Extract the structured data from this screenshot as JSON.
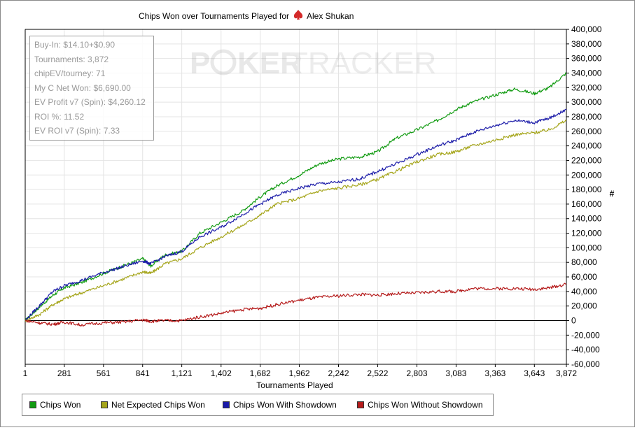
{
  "title": "Chips Won over Tournaments Played for",
  "player": "Alex Shukan",
  "watermark": {
    "part1": "P",
    "part2": "KER",
    "part3": "TRACKER"
  },
  "stats": [
    "Buy-In: $14.10+$0.90",
    "Tournaments: 3,872",
    "chipEV/tourney: 71",
    "My C Net Won: $6,690.00",
    "EV Profit v7 (Spin): $4,260.12",
    "ROI %: 11.52",
    "EV ROI v7 (Spin): 7.33"
  ],
  "colors": {
    "suit": "#d42a2a",
    "axis": "#000000",
    "grid": "#e4e4e4"
  },
  "chart_data": {
    "type": "line",
    "title": "Chips Won over Tournaments Played for Alex Shukan",
    "xlabel": "Tournaments Played",
    "ylabel": "#",
    "xlim": [
      1,
      3872
    ],
    "ylim": [
      -60000,
      400000
    ],
    "x_ticks": [
      "1",
      "281",
      "561",
      "841",
      "1,121",
      "1,402",
      "1,682",
      "1,962",
      "2,242",
      "2,522",
      "2,803",
      "3,083",
      "3,363",
      "3,643",
      "3,872"
    ],
    "y_ticks": [
      "400,000",
      "380,000",
      "360,000",
      "340,000",
      "320,000",
      "300,000",
      "280,000",
      "260,000",
      "240,000",
      "220,000",
      "200,000",
      "180,000",
      "160,000",
      "140,000",
      "120,000",
      "100,000",
      "80,000",
      "60,000",
      "40,000",
      "20,000",
      "0",
      "-20,000",
      "-40,000",
      "-60,000"
    ],
    "grid": true,
    "legend_position": "bottom",
    "x": [
      1,
      100,
      200,
      281,
      400,
      561,
      700,
      841,
      900,
      1000,
      1121,
      1250,
      1402,
      1550,
      1682,
      1800,
      1962,
      2100,
      2242,
      2400,
      2522,
      2650,
      2803,
      2950,
      3083,
      3200,
      3363,
      3500,
      3643,
      3750,
      3872
    ],
    "series": [
      {
        "name": "Chips Won",
        "color": "#119b11",
        "values": [
          0,
          18000,
          35000,
          45000,
          52000,
          65000,
          75000,
          85000,
          75000,
          90000,
          95000,
          120000,
          135000,
          150000,
          170000,
          185000,
          200000,
          215000,
          222000,
          225000,
          232000,
          250000,
          262000,
          275000,
          290000,
          300000,
          310000,
          318000,
          312000,
          320000,
          340000
        ]
      },
      {
        "name": "Net Expected Chips Won",
        "color": "#a5a51a",
        "values": [
          0,
          8000,
          22000,
          30000,
          38000,
          48000,
          57000,
          67000,
          65000,
          78000,
          85000,
          100000,
          115000,
          130000,
          145000,
          160000,
          168000,
          178000,
          182000,
          187000,
          194000,
          205000,
          218000,
          228000,
          232000,
          240000,
          248000,
          255000,
          258000,
          262000,
          275000
        ]
      },
      {
        "name": "Chips Won With Showdown",
        "color": "#1a1aa8",
        "values": [
          0,
          20000,
          40000,
          48000,
          55000,
          66000,
          74000,
          82000,
          78000,
          88000,
          95000,
          115000,
          128000,
          145000,
          160000,
          172000,
          182000,
          188000,
          190000,
          195000,
          205000,
          215000,
          228000,
          240000,
          248000,
          258000,
          268000,
          275000,
          272000,
          278000,
          290000
        ]
      },
      {
        "name": "Chips Won Without Showdown",
        "color": "#b51b1b",
        "values": [
          0,
          -3000,
          -5000,
          -2000,
          -6000,
          -3000,
          -2000,
          1000,
          -1000,
          0,
          0,
          5000,
          10000,
          15000,
          17000,
          22000,
          28000,
          32000,
          34000,
          36000,
          35000,
          37000,
          38000,
          40000,
          40000,
          44000,
          44000,
          44000,
          43000,
          45000,
          50000
        ]
      }
    ]
  }
}
